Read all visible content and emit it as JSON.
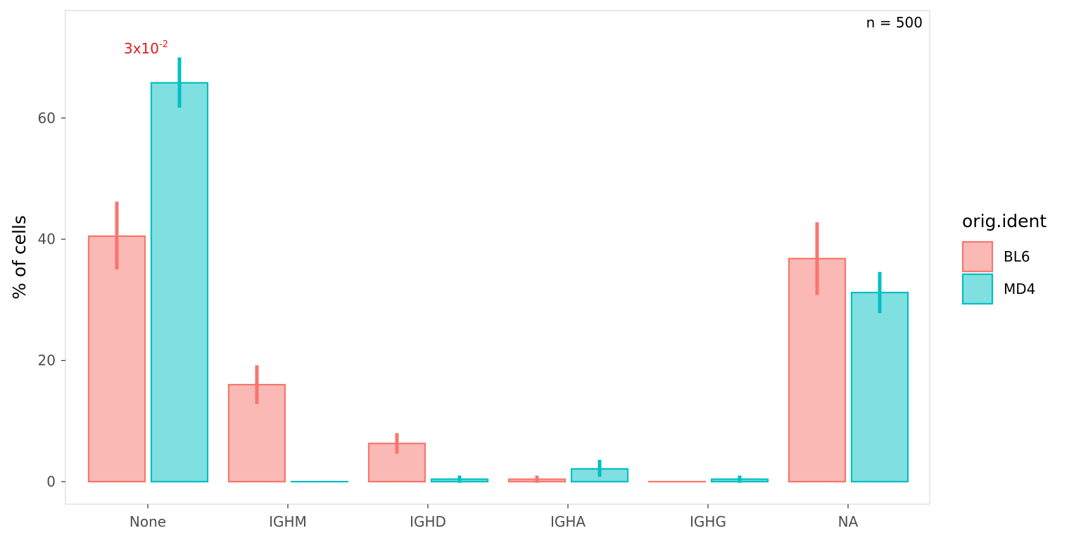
{
  "chart_data": {
    "type": "bar",
    "ylabel": "% of cells",
    "categories": [
      "None",
      "IGHM",
      "IGHD",
      "IGHA",
      "IGHG",
      "NA"
    ],
    "yticks": [
      0,
      20,
      40,
      60
    ],
    "ylim": [
      -3.7,
      77.7
    ],
    "series": [
      {
        "name": "BL6",
        "fill": "#fbb9b5",
        "stroke": "#f8766d",
        "values": [
          40.5,
          16.0,
          6.3,
          0.4,
          0.0,
          36.8
        ],
        "err_low": [
          35.0,
          12.8,
          4.6,
          -0.2,
          0.0,
          30.8
        ],
        "err_high": [
          46.2,
          19.2,
          8.0,
          1.0,
          0.0,
          42.8
        ]
      },
      {
        "name": "MD4",
        "fill": "#80dfe1",
        "stroke": "#00bfc4",
        "values": [
          65.8,
          0.0,
          0.4,
          2.1,
          0.4,
          31.2
        ],
        "err_low": [
          61.7,
          0.0,
          -0.2,
          0.8,
          -0.2,
          27.8
        ],
        "err_high": [
          70.0,
          0.0,
          1.0,
          3.6,
          1.0,
          34.6
        ]
      }
    ],
    "legend": {
      "title": "orig.ident",
      "position": "right"
    },
    "annotations": {
      "count": "n = 500",
      "pvalue": {
        "base": "3x10",
        "exponent": "-2",
        "category": "None",
        "color": "#e41a1c"
      }
    },
    "grid": false
  }
}
